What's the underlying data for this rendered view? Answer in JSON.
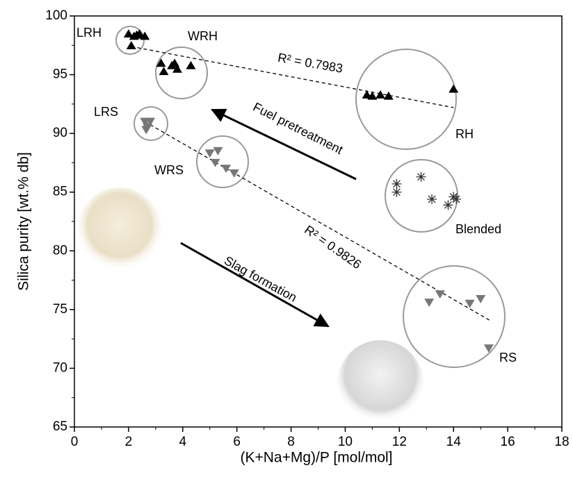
{
  "chart_data": {
    "type": "scatter",
    "x_label": "(K+Na+Mg)/P [mol/mol]",
    "y_label": "Silica purity [wt.% db]",
    "xlim": [
      0,
      18
    ],
    "xticks": [
      0,
      2,
      4,
      6,
      8,
      10,
      12,
      14,
      16,
      18
    ],
    "ylim": [
      65,
      100
    ],
    "yticks": [
      65,
      70,
      75,
      80,
      85,
      90,
      95,
      100
    ],
    "series": [
      {
        "name": "LRH",
        "marker": "triangle-up",
        "color": "#000000",
        "x": [
          2.0,
          2.2,
          2.4,
          2.6,
          2.1,
          2.3
        ],
        "values": [
          98.5,
          98.3,
          98.5,
          98.3,
          97.5,
          98.4
        ]
      },
      {
        "name": "WRH",
        "marker": "triangle-up",
        "color": "#000000",
        "x": [
          3.2,
          3.3,
          3.6,
          3.8,
          3.7,
          4.3
        ],
        "values": [
          96.0,
          95.3,
          95.8,
          95.5,
          96.0,
          95.8
        ]
      },
      {
        "name": "RH",
        "marker": "triangle-up",
        "color": "#000000",
        "x": [
          10.8,
          11.0,
          11.3,
          11.6,
          14.0
        ],
        "values": [
          93.3,
          93.2,
          93.3,
          93.2,
          93.8
        ]
      },
      {
        "name": "LRS",
        "marker": "triangle-down",
        "color": "#777777",
        "x": [
          2.6,
          2.7,
          2.8,
          2.65
        ],
        "values": [
          91.0,
          90.5,
          91.0,
          90.3
        ]
      },
      {
        "name": "WRS",
        "marker": "triangle-down",
        "color": "#777777",
        "x": [
          5.0,
          5.3,
          5.2,
          5.6,
          5.9
        ],
        "values": [
          88.3,
          88.5,
          87.5,
          87.0,
          86.6
        ]
      },
      {
        "name": "Blended",
        "marker": "asterisk",
        "color": "#333333",
        "x": [
          11.9,
          11.9,
          12.8,
          13.2,
          13.8,
          14.0,
          14.1
        ],
        "values": [
          85.7,
          85.0,
          86.3,
          84.4,
          83.9,
          84.6,
          84.4
        ]
      },
      {
        "name": "RS",
        "marker": "triangle-down",
        "color": "#777777",
        "x": [
          13.1,
          13.5,
          14.6,
          15.0,
          15.3
        ],
        "values": [
          75.6,
          76.3,
          75.5,
          75.9,
          71.7
        ]
      }
    ],
    "trend_lines": [
      {
        "label": "R² = 0.7983",
        "x": [
          2.1,
          14.0
        ],
        "values": [
          97.4,
          92.2
        ]
      },
      {
        "label": "R² = 0.9826",
        "x": [
          2.6,
          15.4
        ],
        "values": [
          91.0,
          74.0
        ]
      }
    ],
    "annotations": [
      "Fuel pretreatment",
      "Slag formation"
    ]
  }
}
